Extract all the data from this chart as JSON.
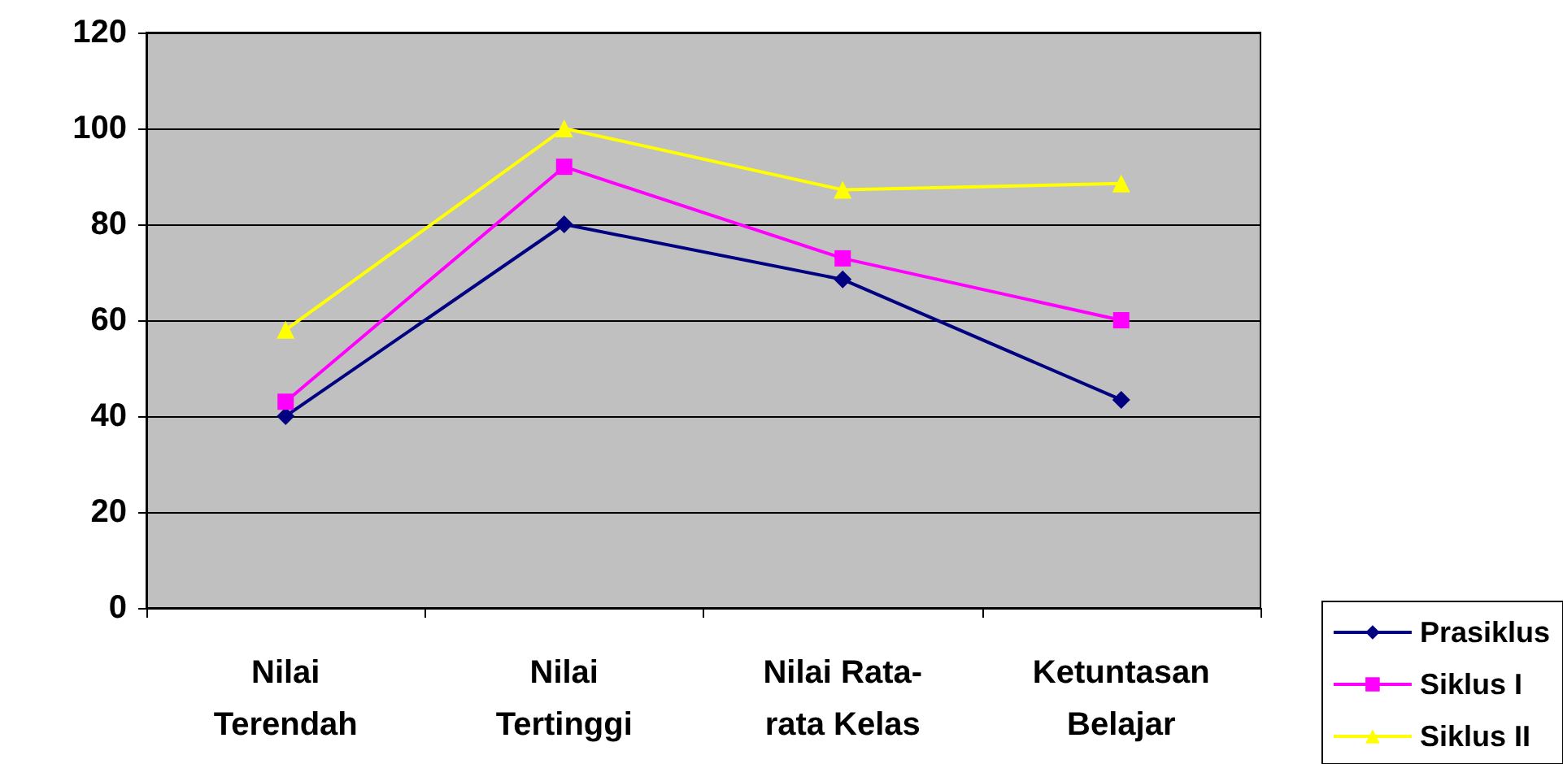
{
  "chart_data": {
    "type": "line",
    "categories": [
      "Nilai\nTerendah",
      "Nilai\nTertinggi",
      "Nilai Rata-\nrata Kelas",
      "Ketuntasan\nBelajar"
    ],
    "series": [
      {
        "name": "Prasiklus",
        "color": "#000080",
        "marker": "diamond",
        "values": [
          40,
          80,
          68.5,
          43.4
        ]
      },
      {
        "name": "Siklus I",
        "color": "#ff00ff",
        "marker": "square",
        "values": [
          43,
          92,
          72.9,
          60
        ]
      },
      {
        "name": "Siklus II",
        "color": "#ffff00",
        "marker": "triangle",
        "values": [
          58,
          100,
          87.2,
          88.5
        ]
      }
    ],
    "ylim": [
      0,
      120
    ],
    "yticks": [
      0,
      20,
      40,
      60,
      80,
      100,
      120
    ],
    "grid": "y",
    "legend": "bottom right"
  }
}
